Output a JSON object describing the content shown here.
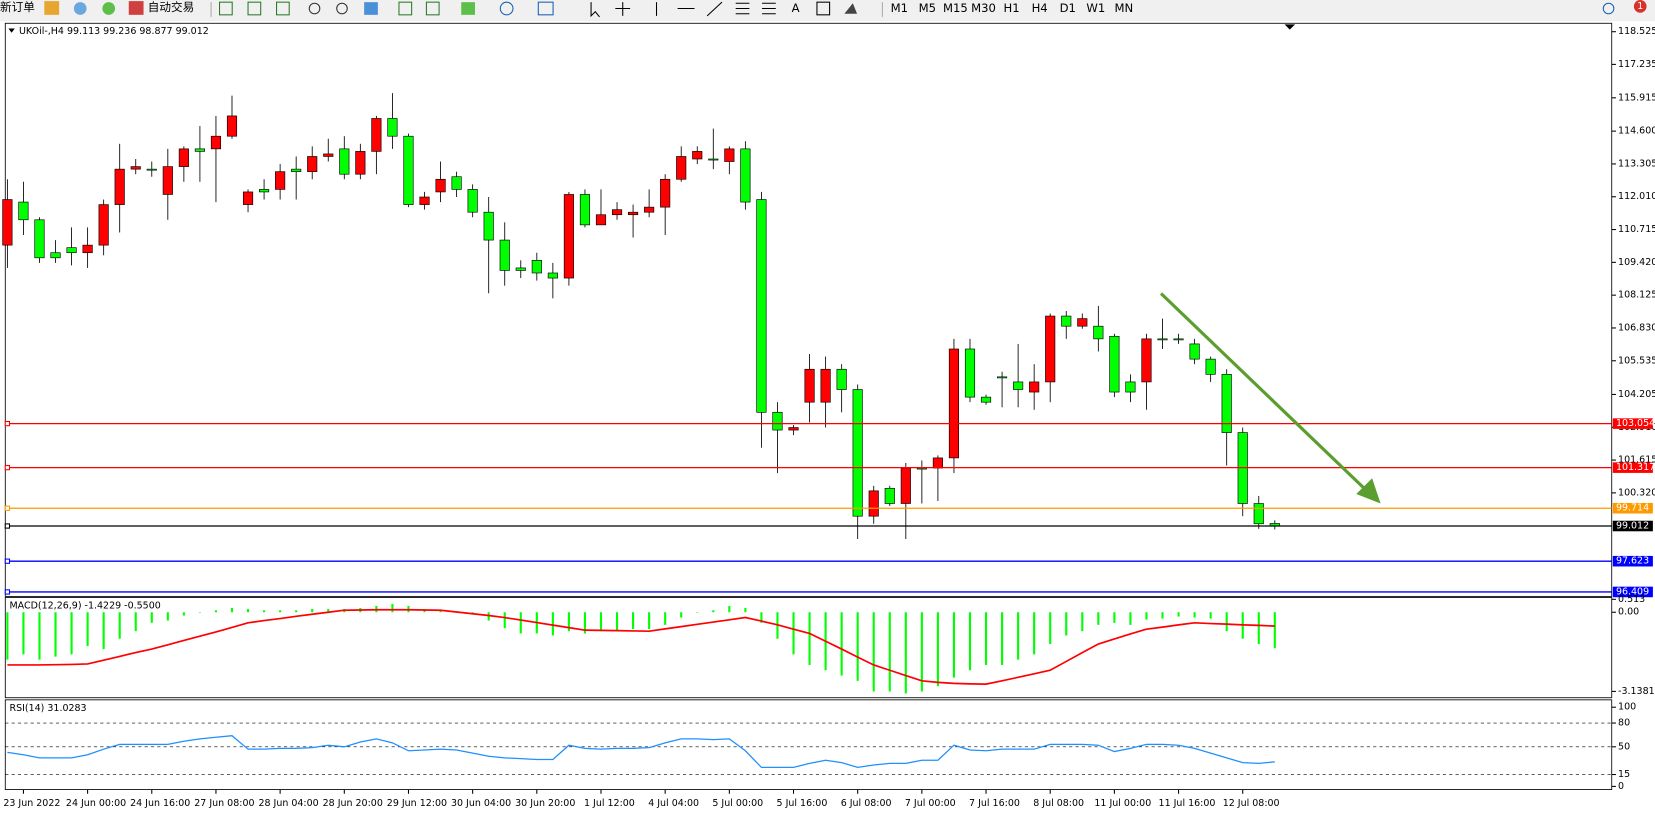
{
  "toolbar": {
    "new_order": "新订单",
    "auto_trading": "自动交易",
    "text_tool": "A",
    "timeframes": [
      "M1",
      "M5",
      "M15",
      "M30",
      "H1",
      "H4",
      "D1",
      "W1",
      "MN"
    ],
    "notifications": 1
  },
  "chart_data": [
    {
      "type": "candlestick",
      "title": "UKOil-,H4 99.113 99.236 98.877 99.012",
      "up_color": "#ff0000",
      "down_color": "#00ff00",
      "grid": false,
      "categories": [
        null,
        "23 Jun 2022",
        null,
        null,
        null,
        "24 Jun 00:00",
        null,
        null,
        null,
        "24 Jun 16:00",
        null,
        null,
        null,
        "27 Jun 08:00",
        null,
        null,
        null,
        "28 Jun 04:00",
        null,
        null,
        null,
        "28 Jun 20:00",
        null,
        null,
        null,
        "29 Jun 12:00",
        null,
        null,
        null,
        "30 Jun 04:00",
        null,
        null,
        null,
        "30 Jun 20:00",
        null,
        null,
        null,
        "1 Jul 12:00",
        null,
        null,
        null,
        "4 Jul 04:00",
        null,
        null,
        null,
        "5 Jul 00:00",
        null,
        null,
        null,
        "5 Jul 16:00",
        null,
        null,
        null,
        "6 Jul 08:00",
        null,
        null,
        null,
        "7 Jul 00:00",
        null,
        null,
        null,
        "7 Jul 16:00",
        null,
        null,
        null,
        "8 Jul 08:00",
        null,
        null,
        null,
        "11 Jul 00:00",
        null,
        null,
        null,
        "11 Jul 16:00",
        null,
        null,
        null,
        "12 Jul 08:00",
        null,
        null
      ],
      "open": [
        110.1,
        111.8,
        111.1,
        109.8,
        110.0,
        109.8,
        110.1,
        111.7,
        113.1,
        113.1,
        112.1,
        113.2,
        113.9,
        113.9,
        114.4,
        111.7,
        112.3,
        112.3,
        113.1,
        113.0,
        113.6,
        113.9,
        112.9,
        113.8,
        115.1,
        114.4,
        111.7,
        112.2,
        112.8,
        112.3,
        111.4,
        110.3,
        109.2,
        109.5,
        109.0,
        108.8,
        112.1,
        110.9,
        111.3,
        111.3,
        111.4,
        111.6,
        112.7,
        113.5,
        113.5,
        113.4,
        113.9,
        111.9,
        103.5,
        102.8,
        103.9,
        103.9,
        105.2,
        104.4,
        99.4,
        100.5,
        99.9,
        101.3,
        101.3,
        101.7,
        106.0,
        104.1,
        104.9,
        104.7,
        104.3,
        104.7,
        107.3,
        106.9,
        106.9,
        106.5,
        104.7,
        104.7,
        106.4,
        106.4,
        106.2,
        105.6,
        105.0,
        102.7,
        99.9,
        99.113
      ],
      "high": [
        112.7,
        112.6,
        111.2,
        110.3,
        110.8,
        110.8,
        111.9,
        114.1,
        113.5,
        113.4,
        113.9,
        114.0,
        114.8,
        115.2,
        116.0,
        112.3,
        112.7,
        113.3,
        113.6,
        114.0,
        114.3,
        114.4,
        114.1,
        115.2,
        116.1,
        114.5,
        112.2,
        113.4,
        113.0,
        112.5,
        112.0,
        111.0,
        109.5,
        109.8,
        109.4,
        112.2,
        112.3,
        112.3,
        111.8,
        111.7,
        112.3,
        112.9,
        114.0,
        114.0,
        114.7,
        114.0,
        114.2,
        112.2,
        103.9,
        103.0,
        105.8,
        105.7,
        105.4,
        104.6,
        100.6,
        100.6,
        101.5,
        101.6,
        101.8,
        106.4,
        106.4,
        104.2,
        105.1,
        106.2,
        105.4,
        107.4,
        107.5,
        107.4,
        107.7,
        106.6,
        105.0,
        106.6,
        107.2,
        106.6,
        106.4,
        105.7,
        105.2,
        102.9,
        100.2,
        99.236
      ],
      "low": [
        109.2,
        110.5,
        109.4,
        109.4,
        109.3,
        109.2,
        109.7,
        110.6,
        112.9,
        112.8,
        111.1,
        112.6,
        112.6,
        111.8,
        114.3,
        111.4,
        111.9,
        111.9,
        111.9,
        112.7,
        113.4,
        112.7,
        112.7,
        112.9,
        113.9,
        111.6,
        111.5,
        111.8,
        112.0,
        111.2,
        108.2,
        108.5,
        108.8,
        108.7,
        108.0,
        108.5,
        110.8,
        110.9,
        111.1,
        110.4,
        111.2,
        110.5,
        112.6,
        113.3,
        113.1,
        112.9,
        111.5,
        102.1,
        101.1,
        102.6,
        103.1,
        102.9,
        103.5,
        98.5,
        99.1,
        99.8,
        98.5,
        99.9,
        100.0,
        101.1,
        103.9,
        103.8,
        103.7,
        103.7,
        103.6,
        103.9,
        106.4,
        106.8,
        105.9,
        104.1,
        103.9,
        103.6,
        106.0,
        106.2,
        105.4,
        104.7,
        101.4,
        99.4,
        98.9,
        98.877
      ],
      "close": [
        111.9,
        111.1,
        109.6,
        109.6,
        109.8,
        110.1,
        111.7,
        113.1,
        113.2,
        113.1,
        113.2,
        113.9,
        113.8,
        114.4,
        115.2,
        112.2,
        112.2,
        113.0,
        113.0,
        113.6,
        113.7,
        112.9,
        113.8,
        115.1,
        114.4,
        111.7,
        112.0,
        112.7,
        112.3,
        111.4,
        110.3,
        109.1,
        109.1,
        109.0,
        108.8,
        112.1,
        110.9,
        111.3,
        111.5,
        111.4,
        111.6,
        112.7,
        113.6,
        113.8,
        113.5,
        113.9,
        111.8,
        103.5,
        102.8,
        102.9,
        105.2,
        105.2,
        104.4,
        99.4,
        100.4,
        99.9,
        101.3,
        101.3,
        101.7,
        106.0,
        104.1,
        103.9,
        104.9,
        104.4,
        104.7,
        107.3,
        106.9,
        107.2,
        106.4,
        104.3,
        104.3,
        106.4,
        106.4,
        106.4,
        105.6,
        105.0,
        102.7,
        99.9,
        99.1,
        99.012
      ],
      "ylim": [
        96.233,
        118.858
      ],
      "yticks": [
        118.525,
        117.235,
        115.915,
        {
          "value": 114.6,
          "label": "114.600"
        },
        113.305,
        {
          "value": 112.01,
          "label": "112.010"
        },
        110.715,
        {
          "value": 109.42,
          "label": "109.420"
        },
        108.125,
        {
          "value": 106.83,
          "label": "106.830"
        },
        105.535,
        104.205,
        {
          "value": 102.91,
          "label": "102.910"
        },
        101.615,
        {
          "value": 100.32,
          "label": "100.320"
        }
      ],
      "levels": [
        {
          "value": 103.054,
          "color": "#ff0000"
        },
        {
          "value": 101.317,
          "color": "#ff0000"
        },
        {
          "value": 99.714,
          "color": "#ff9900"
        },
        {
          "value": 99.012,
          "color": "#000000"
        },
        {
          "value": 97.623,
          "color": "#0000ff"
        },
        {
          "value": 96.409,
          "color": "#0000ff"
        }
      ]
    },
    {
      "type": "macd",
      "title": "MACD(12,26,9) -1.4229 -0.5500",
      "color": "#00ff00",
      "signal_color": "#ff0000",
      "values": [
        -1.88,
        -1.67,
        -1.88,
        -1.76,
        -1.67,
        -1.34,
        -1.46,
        -1.05,
        -0.75,
        -0.42,
        -0.33,
        -0.13,
        0,
        0.08,
        0.17,
        0.13,
        0.08,
        0.08,
        0.08,
        0.13,
        0.13,
        0.13,
        0.17,
        0.25,
        0.33,
        0.25,
        0.13,
        0.08,
        0,
        -0.08,
        -0.33,
        -0.63,
        -0.84,
        -0.84,
        -0.92,
        -0.75,
        -0.84,
        -0.75,
        -0.75,
        -0.67,
        -0.67,
        -0.5,
        -0.21,
        0,
        0.08,
        0.25,
        0.17,
        -0.42,
        -1.05,
        -1.67,
        -2.09,
        -2.3,
        -2.51,
        -2.72,
        -3.14,
        -3.14,
        -3.22,
        -3.14,
        -2.93,
        -2.59,
        -2.3,
        -2.09,
        -2.09,
        -1.88,
        -1.67,
        -1.26,
        -0.92,
        -0.75,
        -0.5,
        -0.42,
        -0.5,
        -0.29,
        -0.25,
        -0.17,
        -0.21,
        -0.25,
        -0.75,
        -1.05,
        -1.26,
        -1.4229
      ],
      "signal": [
        -2.09,
        -2.09,
        -2.09,
        -2.08,
        -2.07,
        -2.05,
        -1.9,
        -1.75,
        -1.6,
        -1.46,
        -1.29,
        -1.12,
        -0.95,
        -0.78,
        -0.6,
        -0.42,
        -0.33,
        -0.25,
        -0.16,
        -0.08,
        0,
        0.08,
        0.09,
        0.1,
        0.1,
        0.1,
        0.09,
        0.08,
        0.01,
        -0.06,
        -0.13,
        -0.21,
        -0.31,
        -0.41,
        -0.51,
        -0.61,
        -0.71,
        -0.72,
        -0.73,
        -0.74,
        -0.75,
        -0.66,
        -0.57,
        -0.48,
        -0.39,
        -0.3,
        -0.21,
        -0.35,
        -0.5,
        -0.67,
        -0.84,
        -1.15,
        -1.46,
        -1.78,
        -2.09,
        -2.3,
        -2.51,
        -2.72,
        -2.78,
        -2.82,
        -2.84,
        -2.85,
        -2.72,
        -2.58,
        -2.44,
        -2.3,
        -1.95,
        -1.6,
        -1.26,
        -1.06,
        -0.86,
        -0.67,
        -0.59,
        -0.5,
        -0.42,
        -0.45,
        -0.47,
        -0.5,
        -0.52,
        -0.55
      ],
      "ylim": [
        -3.389,
        0.586
      ],
      "yticks": [
        0.513,
        {
          "value": 0,
          "label": "0.00"
        },
        -3.1381
      ]
    },
    {
      "type": "line",
      "title": "RSI(14) 31.0283",
      "color": "#1e90ff",
      "values": [
        43,
        40,
        36,
        36,
        36,
        40,
        47,
        53,
        53,
        53,
        53,
        57,
        60,
        62,
        64,
        47,
        47,
        48,
        48,
        49,
        52,
        50,
        56,
        60,
        55,
        45,
        46,
        47,
        46,
        42,
        38,
        36,
        35,
        34,
        34,
        52,
        48,
        47,
        48,
        48,
        49,
        55,
        60,
        60,
        59,
        60,
        45,
        24,
        24,
        24,
        29,
        33,
        30,
        24,
        27,
        29,
        29,
        33,
        33,
        52,
        46,
        45,
        47,
        47,
        47,
        53,
        53,
        53,
        52,
        44,
        48,
        53,
        53,
        52,
        48,
        42,
        36,
        30,
        29,
        31.0283
      ],
      "ylim": [
        -4,
        109.3
      ],
      "yticks": [
        100,
        80,
        50,
        15,
        0
      ],
      "levels": [
        80,
        50,
        15
      ]
    }
  ]
}
